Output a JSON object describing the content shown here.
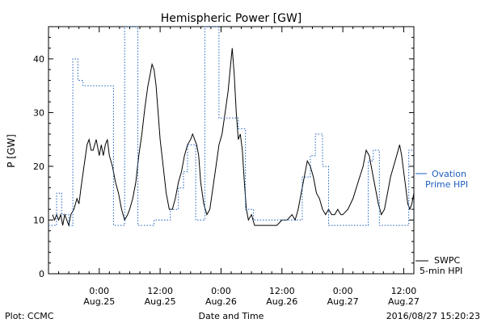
{
  "chart_data": {
    "type": "line",
    "title": "Hemispheric Power [GW]",
    "ylabel": "P [GW]",
    "xlabel": "Date and Time",
    "ylim": [
      0,
      46
    ],
    "xlim": [
      -5,
      31
    ],
    "yticks": [
      0,
      10,
      20,
      30,
      40
    ],
    "xticks": [
      {
        "x": 0,
        "line1": "0:00",
        "line2": "Aug.25"
      },
      {
        "x": 6,
        "line1": "12:00",
        "line2": "Aug.25"
      },
      {
        "x": 12,
        "line1": "0:00",
        "line2": "Aug.26"
      },
      {
        "x": 18,
        "line1": "12:00",
        "line2": "Aug.26"
      },
      {
        "x": 24,
        "line1": "0:00",
        "line2": "Aug.27"
      },
      {
        "x": 30,
        "line1": "12:00",
        "line2": "Aug.27"
      }
    ],
    "series": [
      {
        "name": "SWPC 5-min HPI",
        "color": "#000000",
        "style": "solid",
        "points": [
          [
            -4.6,
            11
          ],
          [
            -4.4,
            10
          ],
          [
            -4.2,
            11
          ],
          [
            -4.0,
            10
          ],
          [
            -3.8,
            11
          ],
          [
            -3.6,
            9
          ],
          [
            -3.4,
            11
          ],
          [
            -3.2,
            10
          ],
          [
            -3.0,
            9
          ],
          [
            -2.8,
            11
          ],
          [
            -2.5,
            12
          ],
          [
            -2.2,
            14
          ],
          [
            -2.0,
            13
          ],
          [
            -1.8,
            16
          ],
          [
            -1.5,
            20
          ],
          [
            -1.2,
            24
          ],
          [
            -1.0,
            25
          ],
          [
            -0.8,
            23
          ],
          [
            -0.6,
            23
          ],
          [
            -0.3,
            25
          ],
          [
            0.0,
            22
          ],
          [
            0.2,
            24
          ],
          [
            0.4,
            22
          ],
          [
            0.6,
            24
          ],
          [
            0.8,
            25
          ],
          [
            1.0,
            22
          ],
          [
            1.3,
            20
          ],
          [
            1.6,
            17
          ],
          [
            1.9,
            15
          ],
          [
            2.2,
            12
          ],
          [
            2.5,
            10
          ],
          [
            2.8,
            11
          ],
          [
            3.0,
            12
          ],
          [
            3.3,
            14
          ],
          [
            3.6,
            17
          ],
          [
            3.9,
            22
          ],
          [
            4.2,
            26
          ],
          [
            4.5,
            31
          ],
          [
            4.8,
            35
          ],
          [
            5.0,
            37
          ],
          [
            5.2,
            39
          ],
          [
            5.4,
            38
          ],
          [
            5.6,
            35
          ],
          [
            5.8,
            30
          ],
          [
            6.0,
            25
          ],
          [
            6.3,
            20
          ],
          [
            6.6,
            15
          ],
          [
            6.9,
            12
          ],
          [
            7.2,
            12
          ],
          [
            7.5,
            14
          ],
          [
            7.8,
            17
          ],
          [
            8.1,
            19
          ],
          [
            8.4,
            22
          ],
          [
            8.7,
            24
          ],
          [
            9.0,
            25
          ],
          [
            9.2,
            26
          ],
          [
            9.4,
            25
          ],
          [
            9.6,
            24
          ],
          [
            9.8,
            22
          ],
          [
            10.0,
            17
          ],
          [
            10.3,
            13
          ],
          [
            10.6,
            11
          ],
          [
            10.9,
            12
          ],
          [
            11.2,
            16
          ],
          [
            11.5,
            20
          ],
          [
            11.8,
            24
          ],
          [
            12.1,
            26
          ],
          [
            12.4,
            30
          ],
          [
            12.7,
            34
          ],
          [
            12.9,
            38
          ],
          [
            13.1,
            42
          ],
          [
            13.3,
            37
          ],
          [
            13.5,
            30
          ],
          [
            13.7,
            25
          ],
          [
            13.9,
            26
          ],
          [
            14.1,
            23
          ],
          [
            14.3,
            17
          ],
          [
            14.5,
            12
          ],
          [
            14.7,
            10
          ],
          [
            15.0,
            11
          ],
          [
            15.3,
            9
          ],
          [
            15.6,
            9
          ],
          [
            16.0,
            9
          ],
          [
            16.5,
            9
          ],
          [
            17.0,
            9
          ],
          [
            17.5,
            9
          ],
          [
            18.0,
            10
          ],
          [
            18.5,
            10
          ],
          [
            19.0,
            11
          ],
          [
            19.3,
            10
          ],
          [
            19.6,
            12
          ],
          [
            19.9,
            15
          ],
          [
            20.2,
            18
          ],
          [
            20.5,
            21
          ],
          [
            20.8,
            20
          ],
          [
            21.1,
            18
          ],
          [
            21.4,
            15
          ],
          [
            21.7,
            14
          ],
          [
            22.0,
            12
          ],
          [
            22.3,
            11
          ],
          [
            22.6,
            12
          ],
          [
            22.9,
            11
          ],
          [
            23.2,
            11
          ],
          [
            23.5,
            12
          ],
          [
            23.8,
            11
          ],
          [
            24.0,
            11
          ],
          [
            24.5,
            12
          ],
          [
            25.0,
            14
          ],
          [
            25.5,
            17
          ],
          [
            26.0,
            20
          ],
          [
            26.3,
            23
          ],
          [
            26.6,
            22
          ],
          [
            26.9,
            19
          ],
          [
            27.2,
            16
          ],
          [
            27.5,
            13
          ],
          [
            27.8,
            11
          ],
          [
            28.1,
            12
          ],
          [
            28.4,
            15
          ],
          [
            28.7,
            18
          ],
          [
            29.0,
            20
          ],
          [
            29.3,
            22
          ],
          [
            29.6,
            24
          ],
          [
            29.8,
            22
          ],
          [
            30.0,
            19
          ],
          [
            30.2,
            16
          ],
          [
            30.4,
            13
          ],
          [
            30.6,
            12
          ],
          [
            30.8,
            13
          ],
          [
            31.0,
            15
          ]
        ]
      },
      {
        "name": "Ovation Prime HPI",
        "color": "#1f5fbf",
        "style": "dotted",
        "points": [
          [
            -5,
            9
          ],
          [
            -4.2,
            9
          ],
          [
            -4.2,
            15
          ],
          [
            -3.7,
            15
          ],
          [
            -3.7,
            11
          ],
          [
            -3.0,
            11
          ],
          [
            -3.0,
            9
          ],
          [
            -2.6,
            9
          ],
          [
            -2.6,
            40
          ],
          [
            -2.1,
            40
          ],
          [
            -2.1,
            36
          ],
          [
            -1.6,
            36
          ],
          [
            -1.6,
            35
          ],
          [
            1.4,
            35
          ],
          [
            1.4,
            9
          ],
          [
            2.5,
            9
          ],
          [
            2.5,
            46
          ],
          [
            3.8,
            46
          ],
          [
            3.8,
            9
          ],
          [
            5.4,
            9
          ],
          [
            5.4,
            10
          ],
          [
            7.0,
            10
          ],
          [
            7.0,
            12
          ],
          [
            7.8,
            12
          ],
          [
            7.8,
            16
          ],
          [
            8.3,
            16
          ],
          [
            8.3,
            19
          ],
          [
            8.7,
            19
          ],
          [
            8.7,
            24
          ],
          [
            9.5,
            24
          ],
          [
            9.5,
            10
          ],
          [
            10.4,
            10
          ],
          [
            10.4,
            46
          ],
          [
            11.8,
            46
          ],
          [
            11.8,
            29
          ],
          [
            13.7,
            29
          ],
          [
            13.7,
            27
          ],
          [
            14.4,
            27
          ],
          [
            14.4,
            12
          ],
          [
            15.2,
            12
          ],
          [
            15.2,
            10
          ],
          [
            20.0,
            10
          ],
          [
            20.0,
            18
          ],
          [
            20.8,
            18
          ],
          [
            20.8,
            22
          ],
          [
            21.3,
            22
          ],
          [
            21.3,
            26
          ],
          [
            22.0,
            26
          ],
          [
            22.0,
            20
          ],
          [
            22.6,
            20
          ],
          [
            22.6,
            9
          ],
          [
            26.5,
            9
          ],
          [
            26.5,
            21
          ],
          [
            27.0,
            21
          ],
          [
            27.0,
            23
          ],
          [
            27.6,
            23
          ],
          [
            27.6,
            9
          ],
          [
            30.5,
            9
          ],
          [
            30.5,
            23
          ],
          [
            31.0,
            23
          ]
        ]
      }
    ],
    "legend": {
      "ovation_line1": "Ovation",
      "ovation_line2": "Prime HPI",
      "swpc_line1": "SWPC",
      "swpc_line2": "5-min HPI"
    },
    "footer": {
      "left": "Plot: CCMC",
      "right": "2016/08/27 15:20:23"
    }
  }
}
